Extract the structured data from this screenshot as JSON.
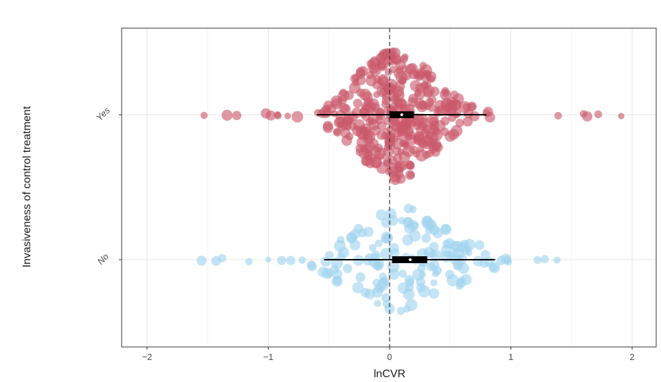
{
  "chart_data": {
    "type": "scatter",
    "subtype": "beeswarm with interval and point estimate",
    "title": "",
    "xlabel": "lnCVR",
    "ylabel": "Invasiveness of control treatment",
    "xlim": [
      -2.2,
      2.1
    ],
    "x_ticks": [
      -2,
      -1,
      0,
      1,
      2
    ],
    "x_tick_labels": [
      "−2",
      "−1",
      "0",
      "1",
      "2"
    ],
    "reference_line_x": 0,
    "grid": true,
    "legend": "none",
    "categories": [
      "Yes",
      "No"
    ],
    "series": [
      {
        "category": "Yes",
        "color": "#c9596b",
        "estimate": 0.1,
        "ci": [
          0.0,
          0.2
        ],
        "pi": [
          -0.6,
          0.8
        ],
        "outlying_points": [
          -1.53,
          -1.34,
          -1.26,
          -1.02,
          -0.98,
          -0.92,
          -0.84,
          0.55,
          0.65,
          0.7,
          0.8,
          1.39,
          1.6,
          1.63,
          1.72,
          1.91
        ],
        "n_points_approx": 350,
        "range": [
          -1.53,
          1.91
        ]
      },
      {
        "category": "No",
        "color": "#9fd3ef",
        "estimate": 0.17,
        "ci": [
          0.02,
          0.31
        ],
        "pi": [
          -0.54,
          0.87
        ],
        "outlying_points": [
          -1.55,
          -1.43,
          -1.38,
          -1.16,
          -1.0,
          -0.89,
          -0.72,
          0.73,
          0.82,
          0.92,
          0.97,
          1.22,
          1.38
        ],
        "n_points_approx": 150,
        "range": [
          -1.55,
          1.38
        ]
      }
    ]
  }
}
